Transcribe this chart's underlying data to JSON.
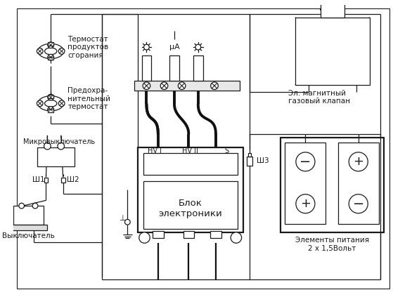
{
  "bg_color": "#ffffff",
  "line_color": "#1a1a1a",
  "wire_color": "#111111",
  "figsize": [
    5.59,
    4.23
  ],
  "dpi": 100,
  "labels": {
    "thermostat1": "Термостат\nпродуктов\nсгорания",
    "thermostat2": "Предохра-\nнительный\nтермостат",
    "microswitch": "Микровыключатель",
    "sh1": "Ш1",
    "sh2": "Ш2",
    "sh3": "Ш3",
    "switch": "Выключатель",
    "block": "Блок\nэлектроники",
    "hv1": "HV I",
    "hv2": "HV II",
    "s": "S",
    "valve": "Эл. магнитный\nгазовый клапан",
    "battery": "Элементы питания\n2 х 1,5Вольт",
    "ua": "μA",
    "ground_sym": "⊥"
  }
}
